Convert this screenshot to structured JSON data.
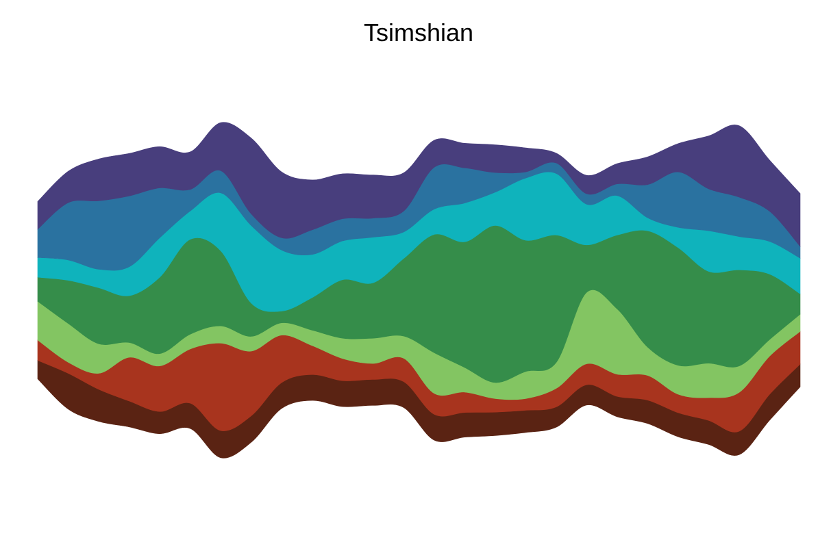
{
  "chart_data": {
    "type": "area",
    "layout": "streamgraph",
    "title": "Tsimshian",
    "xlabel": "",
    "ylabel": "",
    "axes_visible": false,
    "grid": false,
    "legend": "none",
    "x": [
      0,
      1,
      2,
      3,
      4,
      5,
      6,
      7,
      8,
      9,
      10,
      11,
      12,
      13,
      14,
      15,
      16,
      17,
      18,
      19,
      20,
      21,
      22,
      23,
      24,
      25
    ],
    "series": [
      {
        "color": "#5a2313",
        "values": [
          3.0,
          5.8,
          5.2,
          4.2,
          3.6,
          4.1,
          4.4,
          4.3,
          4.2,
          4.2,
          4.2,
          4.2,
          4.2,
          4.2,
          4.0,
          3.8,
          3.6,
          3.3,
          3.3,
          3.3,
          3.8,
          3.9,
          3.9,
          3.8,
          4.2,
          3.7
        ]
      },
      {
        "color": "#a8341e",
        "values": [
          3.3,
          1.8,
          2.6,
          7.1,
          7.4,
          8.8,
          14.2,
          10.5,
          7.7,
          4.7,
          3.6,
          2.6,
          3.8,
          3.4,
          3.3,
          2.2,
          1.9,
          3.0,
          3.4,
          3.6,
          4.0,
          3.0,
          3.7,
          6.3,
          6.2,
          5.3
        ]
      },
      {
        "color": "#83c562",
        "values": [
          6.3,
          6.3,
          4.8,
          2.4,
          2.0,
          2.4,
          2.8,
          2.4,
          2.0,
          2.5,
          3.3,
          4.1,
          3.6,
          6.6,
          4.0,
          2.6,
          4.4,
          4.2,
          11.6,
          10.6,
          4.6,
          4.7,
          5.6,
          4.3,
          2.7,
          2.8
        ]
      },
      {
        "color": "#358d4a",
        "values": [
          3.9,
          7.0,
          9.1,
          7.6,
          12.4,
          15.4,
          12.2,
          5.4,
          1.9,
          5.3,
          9.5,
          9.0,
          12.6,
          19.2,
          20.4,
          25.5,
          21.3,
          20.7,
          7.7,
          12.0,
          18.9,
          19.1,
          14.9,
          15.6,
          10.6,
          3.3
        ]
      },
      {
        "color": "#0fb3bc",
        "values": [
          3.2,
          3.3,
          3.0,
          4.7,
          6.4,
          4.6,
          9.4,
          12.6,
          9.9,
          7.0,
          6.3,
          7.4,
          4.3,
          4.1,
          6.3,
          5.4,
          10.1,
          10.0,
          6.6,
          6.4,
          2.1,
          3.3,
          6.6,
          5.4,
          5.3,
          5.8
        ]
      },
      {
        "color": "#2a72a0",
        "values": [
          4.6,
          9.3,
          11.1,
          11.5,
          8.1,
          3.5,
          3.6,
          1.9,
          2.0,
          4.0,
          3.6,
          3.1,
          3.4,
          6.8,
          5.7,
          3.2,
          1.0,
          1.7,
          1.7,
          1.9,
          5.4,
          9.0,
          6.8,
          6.4,
          4.9,
          1.9
        ]
      },
      {
        "color": "#483e7d",
        "values": [
          4.5,
          5.1,
          6.8,
          6.9,
          6.7,
          6.1,
          7.8,
          12.3,
          10.7,
          8.1,
          7.3,
          7.0,
          6.2,
          4.4,
          4.0,
          4.5,
          3.9,
          1.6,
          3.0,
          3.3,
          4.5,
          4.6,
          8.6,
          11.6,
          8.3,
          8.6
        ]
      }
    ]
  }
}
